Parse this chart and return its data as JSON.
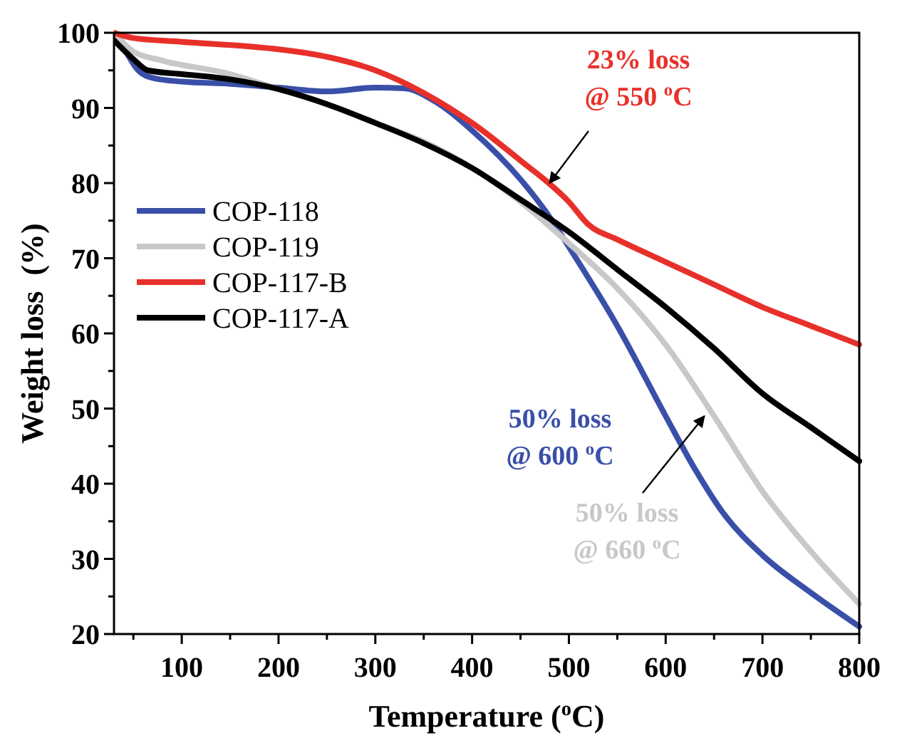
{
  "chart_data": {
    "type": "line",
    "xlabel": "Temperature ($^{o}$C)",
    "ylabel": "Weight loss  (%)",
    "xlim": [
      30,
      800
    ],
    "ylim": [
      20,
      100
    ],
    "xticks": [
      {
        "value": 50,
        "label": null
      },
      100,
      {
        "value": 150,
        "label": null
      },
      200,
      {
        "value": 250,
        "label": null
      },
      300,
      {
        "value": 350,
        "label": null
      },
      400,
      {
        "value": 450,
        "label": null
      },
      500,
      {
        "value": 550,
        "label": null
      },
      600,
      {
        "value": 650,
        "label": null
      },
      700,
      {
        "value": 750,
        "label": null
      },
      800
    ],
    "yticks": [
      20,
      {
        "value": 25,
        "label": null
      },
      30,
      {
        "value": 35,
        "label": null
      },
      40,
      {
        "value": 45,
        "label": null
      },
      50,
      {
        "value": 55,
        "label": null
      },
      60,
      {
        "value": 65,
        "label": null
      },
      70,
      {
        "value": 75,
        "label": null
      },
      80,
      {
        "value": 85,
        "label": null
      },
      90,
      {
        "value": 95,
        "label": null
      },
      100
    ],
    "legend": "left",
    "grid": false,
    "marker": "none",
    "line_style": "solid",
    "series": [
      {
        "name": "COP-118",
        "color": "#3a4fa8",
        "x": [
          30,
          40,
          55,
          70,
          100,
          150,
          200,
          250,
          300,
          330,
          360,
          400,
          450,
          480,
          500,
          550,
          600,
          630,
          660,
          700,
          750,
          800
        ],
        "values": [
          100,
          98,
          95,
          94,
          93.5,
          93.2,
          92.7,
          92.2,
          92.7,
          92.6,
          91,
          87,
          80.5,
          75.5,
          71.5,
          61,
          49,
          42,
          36,
          30.5,
          25.5,
          21
        ]
      },
      {
        "name": "COP-119",
        "color": "#c8c8c8",
        "x": [
          30,
          50,
          80,
          150,
          200,
          250,
          300,
          350,
          400,
          450,
          500,
          550,
          600,
          650,
          700,
          750,
          800
        ],
        "values": [
          100,
          97.5,
          96.3,
          94.5,
          92.5,
          90.5,
          88,
          85.5,
          82,
          77.5,
          72,
          66,
          58.5,
          49,
          39,
          31,
          24
        ]
      },
      {
        "name": "COP-117-B",
        "color": "#e8302a",
        "x": [
          30,
          50,
          100,
          200,
          250,
          300,
          350,
          400,
          450,
          500,
          520,
          550,
          600,
          650,
          700,
          750,
          800
        ],
        "values": [
          100,
          99.3,
          98.8,
          97.8,
          96.8,
          95,
          92,
          88,
          83,
          77.5,
          74.5,
          72.5,
          69.5,
          66.5,
          63.5,
          61,
          58.5
        ]
      },
      {
        "name": "COP-117-A",
        "color": "#000000",
        "x": [
          30,
          50,
          65,
          100,
          150,
          200,
          250,
          300,
          350,
          400,
          450,
          500,
          550,
          600,
          650,
          700,
          750,
          800
        ],
        "values": [
          99,
          96.5,
          95,
          94.5,
          93.8,
          92.5,
          90.5,
          88,
          85.3,
          82,
          77.8,
          73.5,
          68.5,
          63.5,
          58,
          52,
          47.5,
          43
        ]
      }
    ],
    "annotations": [
      {
        "text": "23% loss\n@ 550 $^{o}$C",
        "x": 480,
        "y": 80
      },
      "50% loss\n@ 600 $^{o}$C",
      {
        "text": "50% loss\n@ 660 $^{o}$C",
        "x": 640,
        "y": 49
      }
    ]
  }
}
